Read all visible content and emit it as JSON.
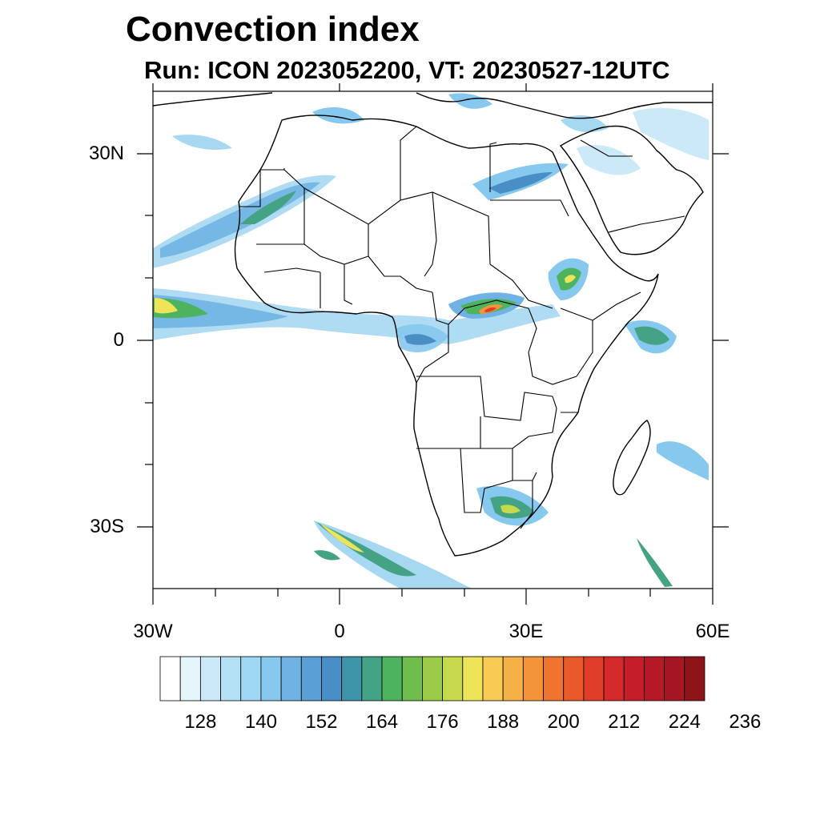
{
  "title": "Convection index",
  "subtitle": "Run: ICON 2023052200,  VT: 20230527-12UTC",
  "map": {
    "region": "Africa",
    "lon_range": [
      -30,
      60
    ],
    "lat_range": [
      -40,
      40
    ],
    "y_ticks": [
      {
        "lat": 30,
        "label": "30N"
      },
      {
        "lat": 0,
        "label": "0"
      },
      {
        "lat": -30,
        "label": "30S"
      }
    ],
    "x_ticks": [
      {
        "lon": -30,
        "label": "30W"
      },
      {
        "lon": 0,
        "label": "0"
      },
      {
        "lon": 30,
        "label": "30E"
      },
      {
        "lon": 60,
        "label": "60E"
      }
    ]
  },
  "colorbar": {
    "colors": [
      "#ffffff",
      "#e6f4fc",
      "#cce9f8",
      "#b4e0f6",
      "#9ed8f4",
      "#86c8ee",
      "#6fb2e3",
      "#5a9fd6",
      "#4a8ec6",
      "#3e94a8",
      "#44a384",
      "#4db35e",
      "#6ebe4d",
      "#9ccb4a",
      "#c6d94a",
      "#eee45a",
      "#f8cb55",
      "#f5b047",
      "#f3943a",
      "#ee7430",
      "#e95a2a",
      "#e03e29",
      "#d42a2c",
      "#c51e2a",
      "#b51925",
      "#a51622",
      "#8f1419"
    ],
    "tick_labels": [
      "128",
      "140",
      "152",
      "164",
      "176",
      "188",
      "200",
      "212",
      "224",
      "236"
    ]
  }
}
